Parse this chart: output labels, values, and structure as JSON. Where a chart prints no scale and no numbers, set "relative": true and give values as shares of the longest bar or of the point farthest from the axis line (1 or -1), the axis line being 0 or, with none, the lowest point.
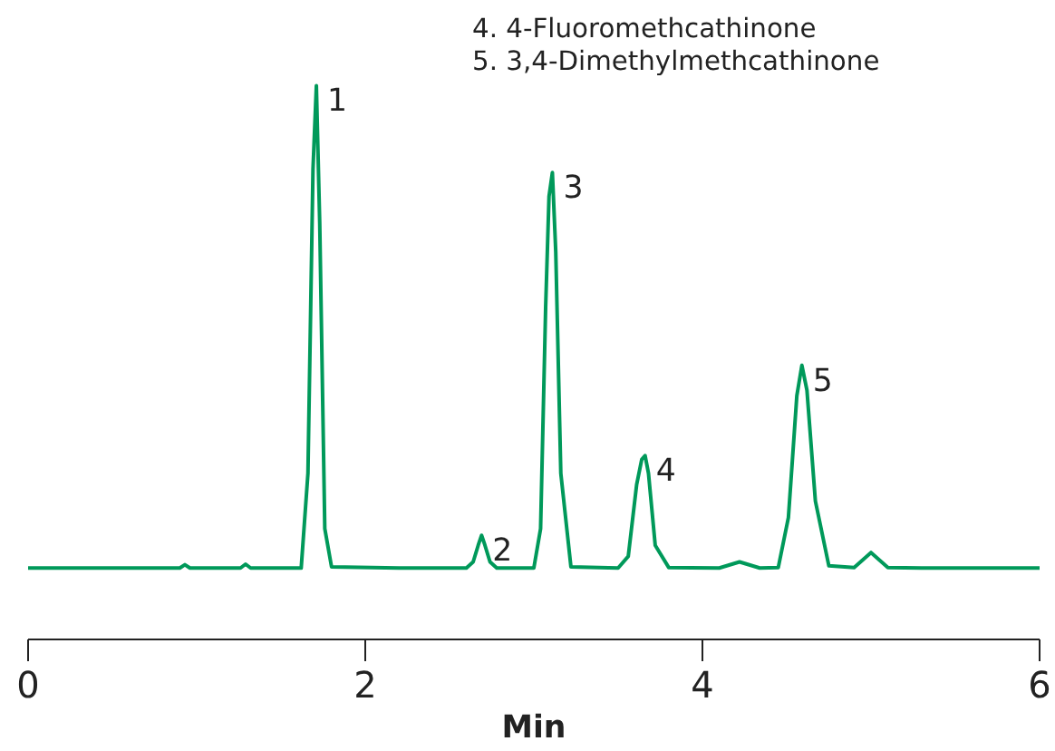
{
  "chart_data": {
    "type": "line",
    "relative": true,
    "xlabel": "Min",
    "xlim": [
      0,
      6
    ],
    "xticks": [
      0,
      2,
      4,
      6
    ],
    "grid": false,
    "x": [
      0,
      0.9,
      0.93,
      0.96,
      1.26,
      1.29,
      1.32,
      1.62,
      1.66,
      1.69,
      1.71,
      1.73,
      1.76,
      1.8,
      2.2,
      2.6,
      2.64,
      2.67,
      2.69,
      2.71,
      2.74,
      2.78,
      3.0,
      3.04,
      3.07,
      3.09,
      3.11,
      3.13,
      3.16,
      3.22,
      3.5,
      3.56,
      3.61,
      3.64,
      3.66,
      3.68,
      3.72,
      3.8,
      4.1,
      4.22,
      4.34,
      4.45,
      4.51,
      4.56,
      4.59,
      4.62,
      4.67,
      4.75,
      4.9,
      5.0,
      5.1,
      5.3,
      6
    ],
    "series": [
      {
        "color": "#00995a",
        "values": [
          0.129,
          0.129,
          0.135,
          0.129,
          0.129,
          0.136,
          0.129,
          0.129,
          0.3,
          0.85,
          1.0,
          0.75,
          0.2,
          0.131,
          0.129,
          0.129,
          0.14,
          0.17,
          0.188,
          0.17,
          0.14,
          0.129,
          0.129,
          0.2,
          0.6,
          0.8,
          0.843,
          0.7,
          0.3,
          0.131,
          0.129,
          0.15,
          0.28,
          0.325,
          0.332,
          0.3,
          0.17,
          0.13,
          0.129,
          0.14,
          0.129,
          0.13,
          0.22,
          0.44,
          0.495,
          0.45,
          0.25,
          0.133,
          0.13,
          0.157,
          0.13,
          0.129,
          0.129
        ]
      }
    ],
    "annotations": [
      "4. 4-Fluoromethcathinone",
      "5. 3,4-Dimethylmethcathinone",
      {
        "text": "1",
        "x": 1.71,
        "y": 1.0
      },
      {
        "text": "2",
        "x": 2.69,
        "y": 0.188
      },
      {
        "text": "3",
        "x": 3.11,
        "y": 0.843
      },
      {
        "text": "4",
        "x": 3.66,
        "y": 0.332
      },
      {
        "text": "5",
        "x": 4.59,
        "y": 0.495
      }
    ]
  }
}
